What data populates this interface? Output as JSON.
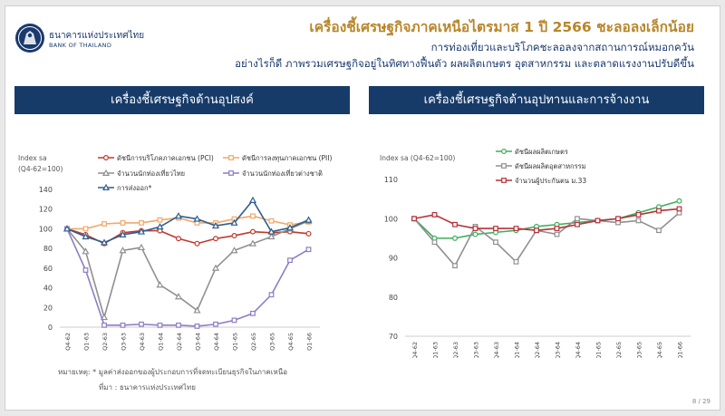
{
  "header": {
    "logo_th": "ธนาคารแห่งประเทศไทย",
    "logo_en": "BANK OF THAILAND",
    "title": "เครื่องชี้เศรษฐกิจภาคเหนือไตรมาส 1 ปี 2566 ชะลอลงเล็กน้อย",
    "subtitle_1": "การท่องเที่ยวและบริโภคชะลอลงจากสถานการณ์หมอกควัน",
    "subtitle_2": "อย่างไรก็ดี ภาพรวมเศรษฐกิจอยู่ในทิศทางฟื้นตัว ผลผลิตเกษตร อุตสาหกรรม และตลาดแรงงานปรับดีขึ้น"
  },
  "panels": {
    "left_title": "เครื่องชี้เศรษฐกิจด้านอุปสงค์",
    "right_title": "เครื่องชี้เศรษฐกิจด้านอุปทานและการจ้างงาน"
  },
  "notes": {
    "note": "หมายเหตุ: * มูลค่าส่งออกของผู้ประกอบการที่จดทะเบียนธุรกิจในภาคเหนือ",
    "source": "ที่มา : ธนาคารแห่งประเทศไทย"
  },
  "page_number": "8 / 29",
  "colors": {
    "navy": "#173b69",
    "gold": "#b8862a"
  },
  "chart_data": [
    {
      "type": "line",
      "ylabel": "Index sa",
      "ylabel_2": "(Q4-62=100)",
      "ylim": [
        0,
        140
      ],
      "yticks": [
        0,
        20,
        40,
        60,
        80,
        100,
        120,
        140
      ],
      "grid": false,
      "legend": "top",
      "categories": [
        "Q4-62",
        "Q1-63",
        "Q2-63",
        "Q3-63",
        "Q4-63",
        "Q1-64",
        "Q2-64",
        "Q3-64",
        "Q4-64",
        "Q1-65",
        "Q2-65",
        "Q3-65",
        "Q4-65",
        "Q1-66"
      ],
      "series": [
        {
          "name": "ดัชนีการบริโภคภาคเอกชน (PCI)",
          "color": "#c0392b",
          "marker": "circle",
          "values": [
            100,
            94,
            85,
            96,
            98,
            98,
            90,
            85,
            90,
            93,
            97,
            96,
            97,
            95
          ]
        },
        {
          "name": "ดัชนีการลงทุนภาคเอกชน (PII)",
          "color": "#f0a868",
          "marker": "square",
          "values": [
            100,
            100,
            105,
            106,
            106,
            109,
            111,
            106,
            106,
            110,
            113,
            108,
            104,
            107
          ]
        },
        {
          "name": "จำนวนนักท่องเที่ยวไทย",
          "color": "#909090",
          "marker": "triangle",
          "values": [
            100,
            77,
            10,
            78,
            81,
            43,
            31,
            17,
            60,
            78,
            85,
            92,
            100,
            108
          ]
        },
        {
          "name": "จำนวนนักท่องเที่ยวต่างชาติ",
          "color": "#8e7cc3",
          "marker": "square",
          "values": [
            100,
            58,
            2,
            2,
            3,
            2,
            2,
            1,
            3,
            7,
            14,
            33,
            68,
            79
          ]
        },
        {
          "name": "การส่งออก*",
          "color": "#2f5e8e",
          "marker": "triangle",
          "values": [
            100,
            92,
            86,
            94,
            97,
            102,
            113,
            110,
            103,
            106,
            129,
            97,
            101,
            109
          ]
        }
      ]
    },
    {
      "type": "line",
      "ylabel": "Index sa (Q4-62=100)",
      "ylim": [
        70,
        110
      ],
      "yticks": [
        70,
        80,
        90,
        100,
        110
      ],
      "grid": false,
      "legend": "top",
      "categories": [
        "Q4-62",
        "Q1-63",
        "Q2-63",
        "Q3-63",
        "Q4-63",
        "Q1-64",
        "Q2-64",
        "Q3-64",
        "Q4-64",
        "Q1-65",
        "Q2-65",
        "Q3-65",
        "Q4-65",
        "Q1-66"
      ],
      "series": [
        {
          "name": "ดัชนีผลผลิตเกษตร",
          "color": "#3cb05a",
          "marker": "circle",
          "values": [
            100,
            95,
            95,
            96,
            96.5,
            97,
            98,
            98.5,
            99,
            99.5,
            100,
            101.5,
            103,
            104.5
          ]
        },
        {
          "name": "ดัชนีผลผลิตอุตสาหกรรม",
          "color": "#909090",
          "marker": "square",
          "values": [
            100,
            94,
            88,
            98,
            94,
            89,
            97,
            96,
            100,
            99.5,
            99,
            99.5,
            97,
            101.5
          ]
        },
        {
          "name": "จำนวนผู้ประกันตน ม.33",
          "color": "#b5323a",
          "marker": "square",
          "values": [
            100,
            101,
            98.5,
            97.5,
            97.5,
            97.5,
            97,
            97.5,
            98.5,
            99.5,
            100,
            101,
            102,
            102.5
          ]
        }
      ]
    }
  ]
}
